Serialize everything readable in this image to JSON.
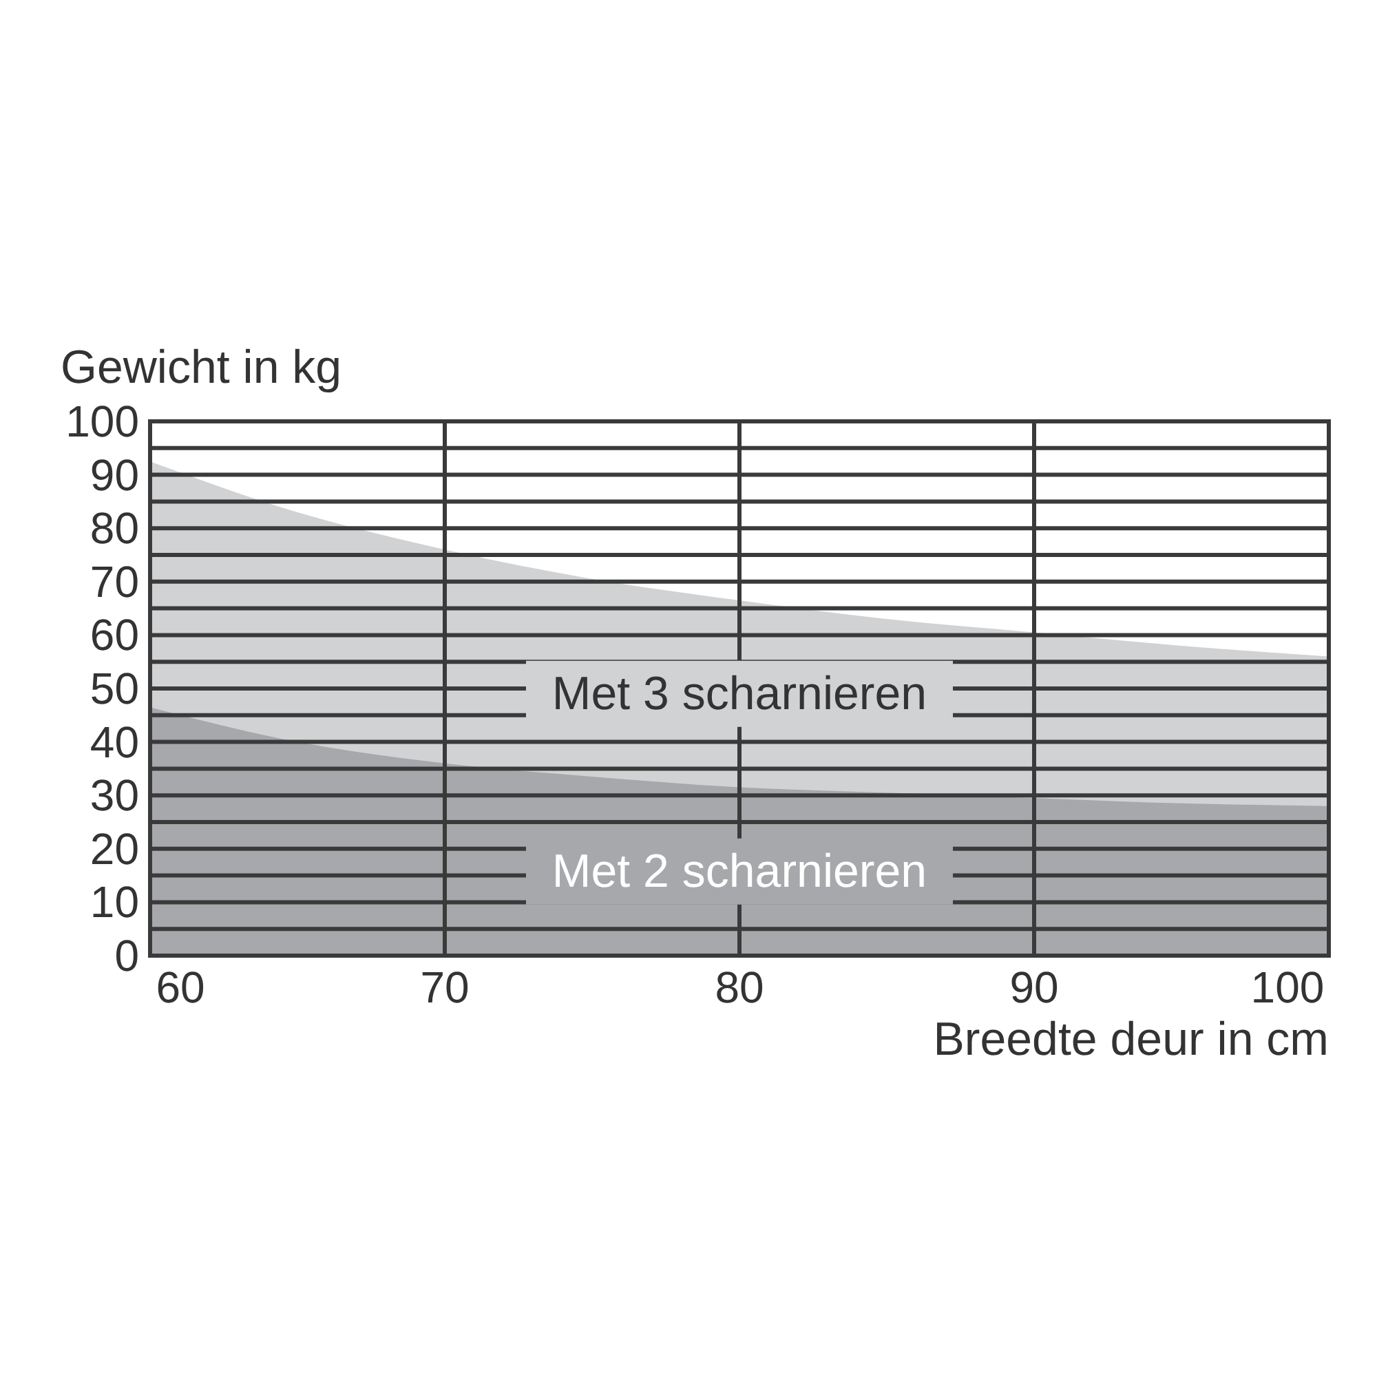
{
  "chart_data": {
    "type": "area",
    "xlabel": "Breedte deur in cm",
    "ylabel": "Gewicht in kg",
    "x": [
      60,
      65,
      70,
      75,
      80,
      85,
      90,
      95,
      100
    ],
    "series": [
      {
        "name": "Met 3 scharnieren",
        "color": "#d1d2d4",
        "values": [
          92.5,
          83,
          76,
          70.5,
          66.5,
          63,
          60.5,
          58,
          56
        ]
      },
      {
        "name": "Met 2 scharnieren",
        "color": "#a7a8ab",
        "values": [
          46.5,
          40,
          36,
          33.5,
          31.5,
          30.5,
          29.5,
          28.5,
          28
        ]
      }
    ],
    "xlim": [
      60,
      100
    ],
    "xticks": [
      60,
      70,
      80,
      90,
      100
    ],
    "ylim": [
      0,
      100
    ],
    "yticks": [
      0,
      {
        "value": 5,
        "label": null
      },
      10,
      {
        "value": 15,
        "label": null
      },
      20,
      {
        "value": 25,
        "label": null
      },
      30,
      {
        "value": 35,
        "label": null
      },
      40,
      {
        "value": 45,
        "label": null
      },
      50,
      {
        "value": 55,
        "label": null
      },
      60,
      {
        "value": 65,
        "label": null
      },
      70,
      {
        "value": 75,
        "label": null
      },
      80,
      {
        "value": 85,
        "label": null
      },
      90,
      {
        "value": 95,
        "label": null
      },
      100
    ],
    "grid": true
  }
}
